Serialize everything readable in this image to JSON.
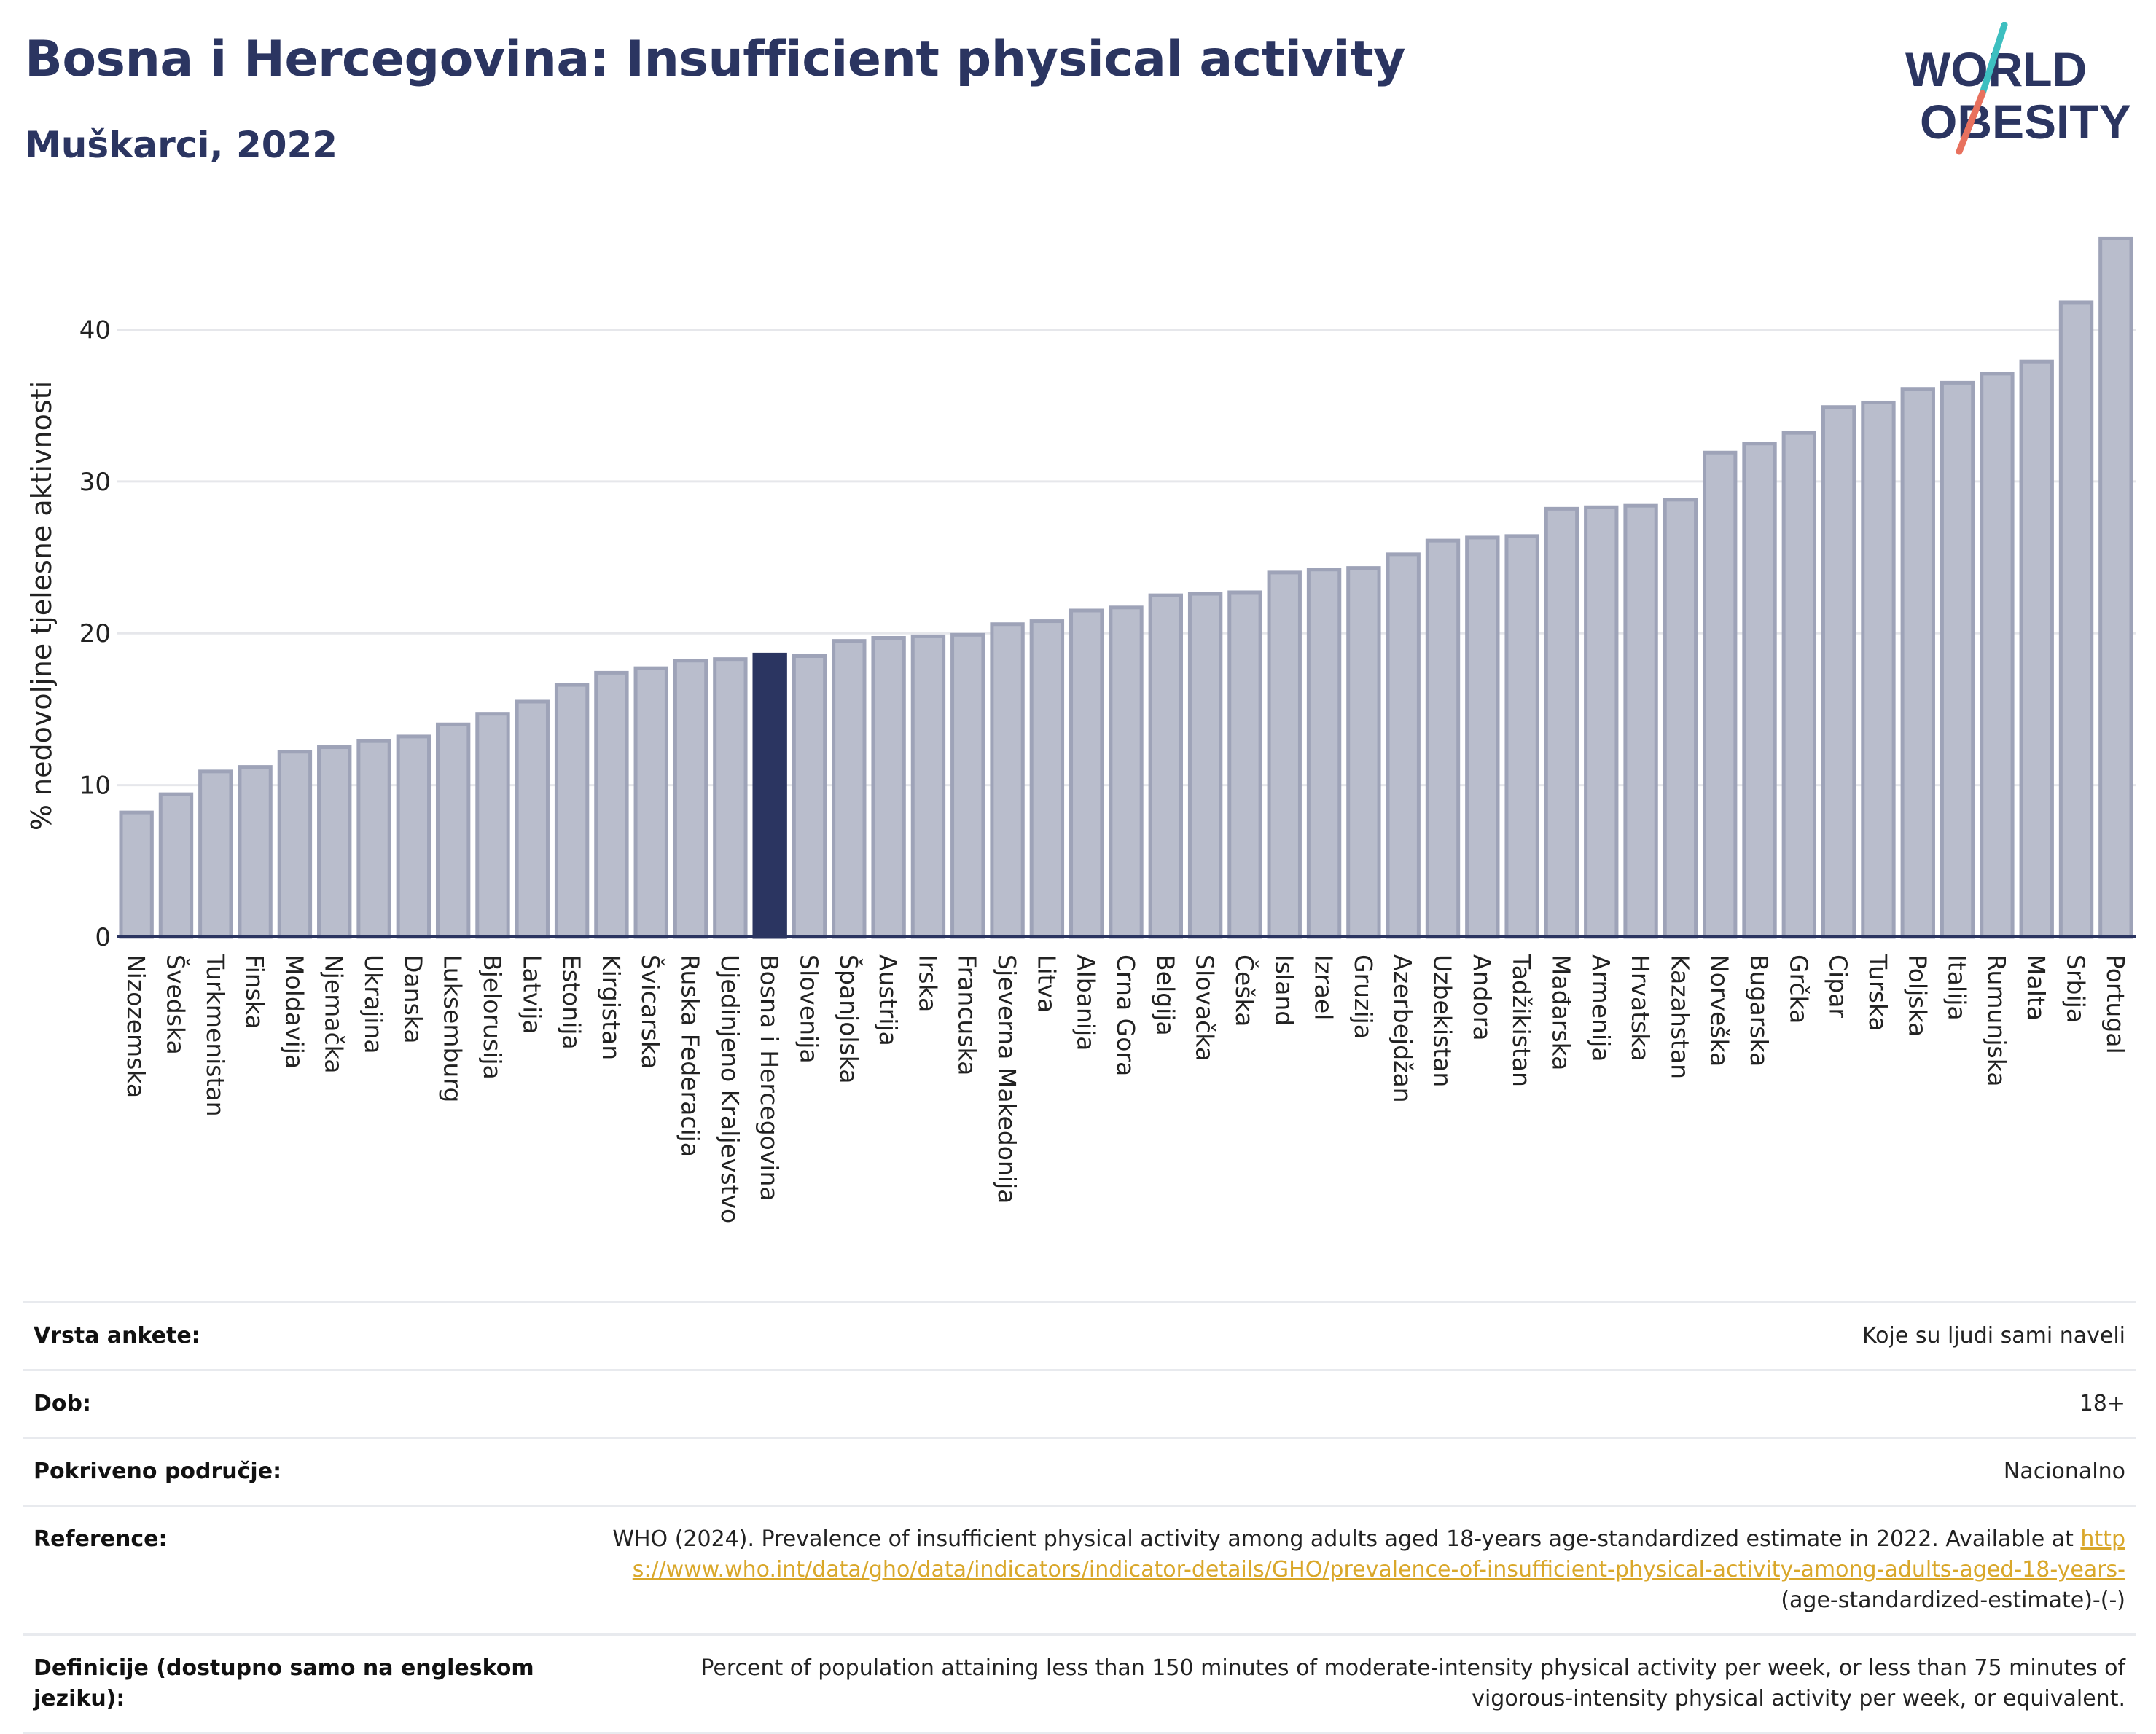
{
  "header": {
    "title": "Bosna i Hercegovina: Insufficient physical activity",
    "subtitle": "Muškarci, 2022"
  },
  "logo": {
    "line1": "WORLD",
    "line2": "OBESITY",
    "colors": {
      "text": "#2b3561",
      "slash_top": "#3dbfc0",
      "slash_bottom": "#e8715e"
    }
  },
  "colors": {
    "bar_fill": "#b9bdcc",
    "bar_stroke": "#9ea3b8",
    "highlight_fill": "#2b3561",
    "grid": "#e6e7eb",
    "axis": "#2b3561",
    "link": "#d9a72a"
  },
  "chart_data": {
    "type": "bar",
    "title": "Bosna i Hercegovina: Insufficient physical activity",
    "subtitle": "Muškarci, 2022",
    "ylabel": "% nedovoljne tjelesne aktivnosti",
    "xlabel": "",
    "ylim": [
      0,
      46.5
    ],
    "yticks": [
      0,
      10,
      20,
      30,
      40
    ],
    "grid": true,
    "highlight": "Bosna i Hercegovina",
    "categories": [
      "Nizozemska",
      "Švedska",
      "Turkmenistan",
      "Finska",
      "Moldavija",
      "Njemačka",
      "Ukrajina",
      "Danska",
      "Luksemburg",
      "Bjelorusija",
      "Latvija",
      "Estonija",
      "Kirgistan",
      "Švicarska",
      "Ruska Federacija",
      "Ujedinjeno Kraljevstvo",
      "Bosna i Hercegovina",
      "Slovenija",
      "Španjolska",
      "Austrija",
      "Irska",
      "Francuska",
      "Sjeverna Makedonija",
      "Litva",
      "Albanija",
      "Crna Gora",
      "Belgija",
      "Slovačka",
      "Češka",
      "Island",
      "Izrael",
      "Gruzija",
      "Azerbejdžan",
      "Uzbekistan",
      "Andora",
      "Tadžikistan",
      "Mađarska",
      "Armenija",
      "Hrvatska",
      "Kazahstan",
      "Norveška",
      "Bugarska",
      "Grčka",
      "Cipar",
      "Turska",
      "Poljska",
      "Italija",
      "Rumunjska",
      "Malta",
      "Srbija",
      "Portugal"
    ],
    "values": [
      8.2,
      9.4,
      10.9,
      11.2,
      12.2,
      12.5,
      12.9,
      13.2,
      14.0,
      14.7,
      15.5,
      16.6,
      17.4,
      17.7,
      18.2,
      18.3,
      18.6,
      18.5,
      19.5,
      19.7,
      19.8,
      19.9,
      20.6,
      20.8,
      21.5,
      21.7,
      22.5,
      22.6,
      22.7,
      24.0,
      24.2,
      24.3,
      25.2,
      26.1,
      26.3,
      26.4,
      28.2,
      28.3,
      28.4,
      28.8,
      31.9,
      32.5,
      33.2,
      34.9,
      35.2,
      36.1,
      36.5,
      37.1,
      37.9,
      41.8,
      46.0
    ]
  },
  "info": {
    "rows": [
      {
        "label": "Vrsta ankete:",
        "value": "Koje su ljudi sami naveli"
      },
      {
        "label": "Dob:",
        "value": "18+"
      },
      {
        "label": "Pokriveno područje:",
        "value": "Nacionalno"
      }
    ],
    "reference": {
      "label": "Reference:",
      "text": "WHO (2024). Prevalence of insufficient physical activity among adults aged 18-years age-standardized estimate in 2022. Available at",
      "link": "https://www.who.int/data/gho/data/indicators/indicator-details/GHO/prevalence-of-insufficient-physical-activity-among-adults-aged-18-years-",
      "suffix": "(age-standardized-estimate)-(-)"
    },
    "definition": {
      "label": "Definicije (dostupno samo na engleskom jeziku):",
      "value": "Percent of population attaining less than 150 minutes of moderate-intensity physical activity per week, or less than 75 minutes of vigorous-intensity physical activity per week, or equivalent."
    }
  }
}
